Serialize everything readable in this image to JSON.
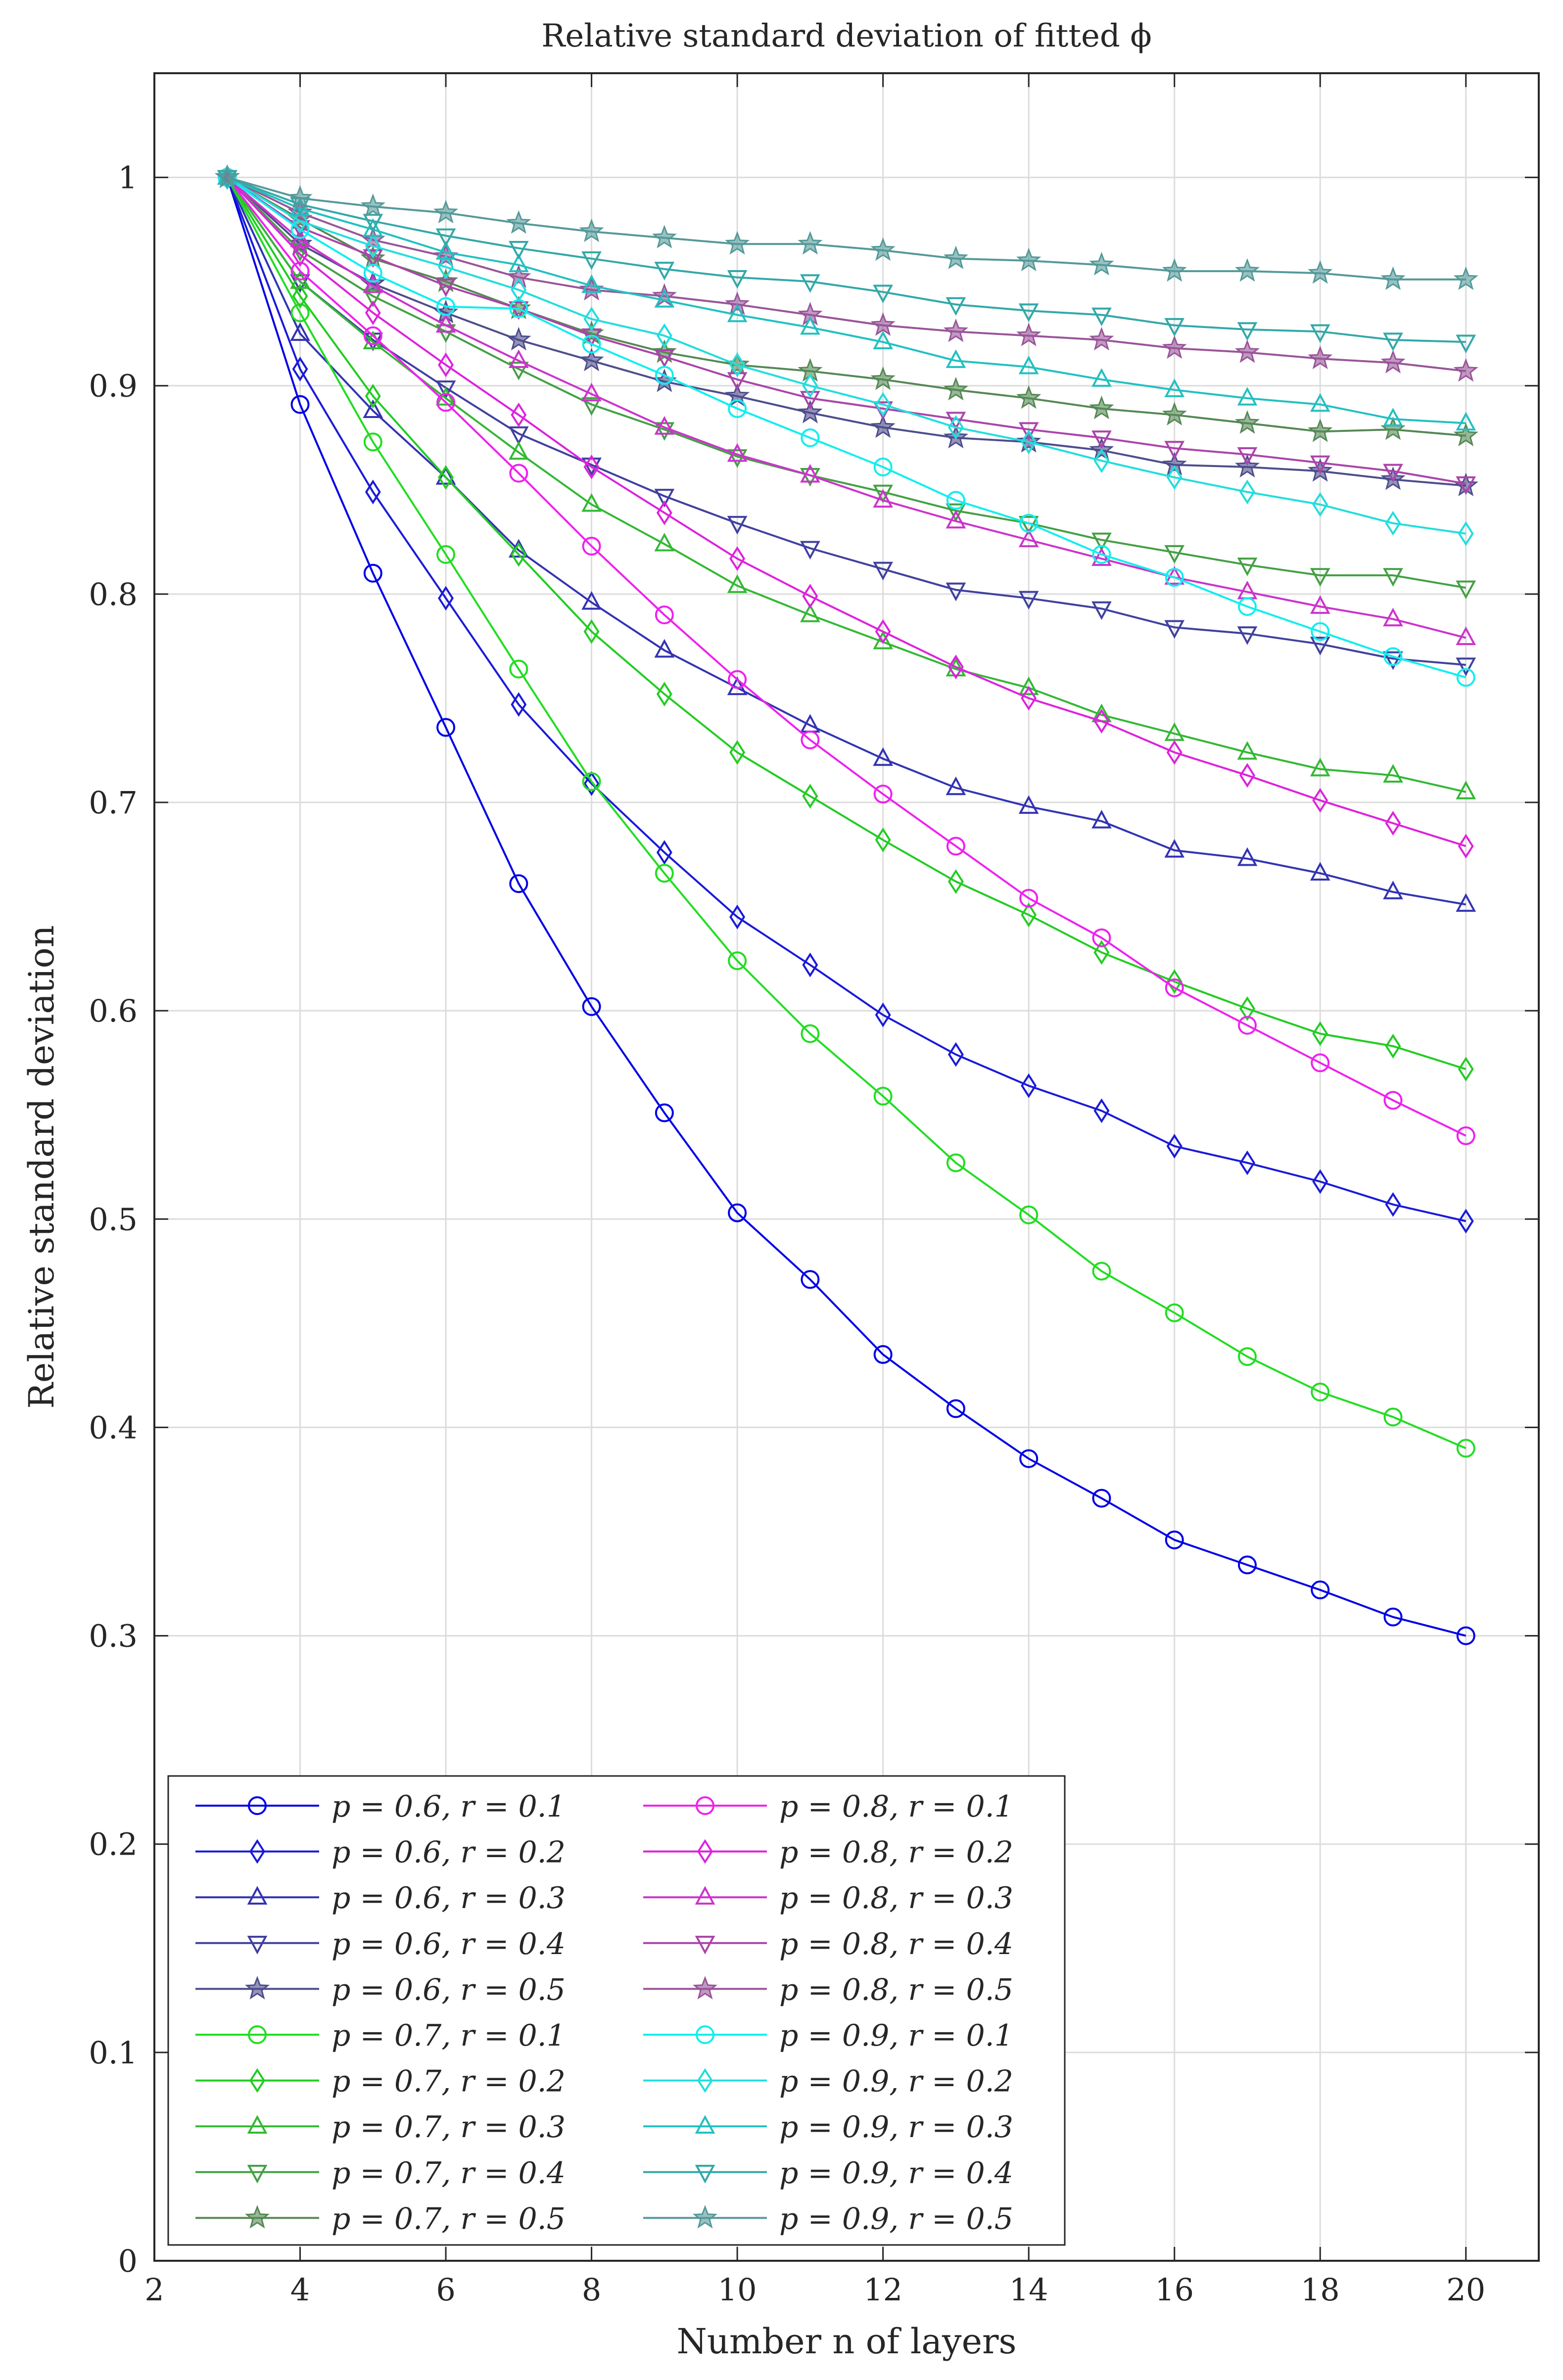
{
  "chart_data": {
    "type": "line",
    "title": "Relative standard deviation of fitted ϕ",
    "xlabel": "Number n of layers",
    "ylabel": "Relative standard deviation",
    "xlim": [
      2,
      21
    ],
    "ylim": [
      0,
      1.05
    ],
    "xticks": [
      2,
      4,
      6,
      8,
      10,
      12,
      14,
      16,
      18,
      20
    ],
    "yticks": [
      0,
      0.1,
      0.2,
      0.3,
      0.4,
      0.5,
      0.6,
      0.7,
      0.8,
      0.9,
      1
    ],
    "xtick_labels": [
      "2",
      "4",
      "6",
      "8",
      "10",
      "12",
      "14",
      "16",
      "18",
      "20"
    ],
    "ytick_labels": [
      "0",
      "0.1",
      "0.2",
      "0.3",
      "0.4",
      "0.5",
      "0.6",
      "0.7",
      "0.8",
      "0.9",
      "1"
    ],
    "grid": true,
    "legend_position": "bottom-left",
    "x": [
      3,
      4,
      5,
      6,
      7,
      8,
      9,
      10,
      11,
      12,
      13,
      14,
      15,
      16,
      17,
      18,
      19,
      20
    ],
    "series": [
      {
        "name": "p = 0.6, r = 0.1",
        "color": "#0000e6",
        "marker": "circle",
        "values": [
          1.0,
          0.891,
          0.81,
          0.736,
          0.661,
          0.602,
          0.551,
          0.503,
          0.471,
          0.435,
          0.409,
          0.385,
          0.366,
          0.346,
          0.334,
          0.322,
          0.309,
          0.3
        ]
      },
      {
        "name": "p = 0.6, r = 0.2",
        "color": "#1a1ad9",
        "marker": "diamond",
        "values": [
          1.0,
          0.908,
          0.849,
          0.798,
          0.747,
          0.709,
          0.676,
          0.645,
          0.622,
          0.598,
          0.579,
          0.564,
          0.552,
          0.535,
          0.527,
          0.518,
          0.507,
          0.499
        ]
      },
      {
        "name": "p = 0.6, r = 0.3",
        "color": "#3333b3",
        "marker": "triangle-up",
        "values": [
          1.0,
          0.925,
          0.888,
          0.856,
          0.821,
          0.796,
          0.773,
          0.755,
          0.737,
          0.721,
          0.707,
          0.698,
          0.691,
          0.677,
          0.673,
          0.666,
          0.657,
          0.651
        ]
      },
      {
        "name": "p = 0.6, r = 0.4",
        "color": "#40409f",
        "marker": "triangle-down",
        "values": [
          1.0,
          0.95,
          0.922,
          0.899,
          0.877,
          0.862,
          0.847,
          0.834,
          0.822,
          0.812,
          0.802,
          0.798,
          0.793,
          0.784,
          0.781,
          0.776,
          0.769,
          0.766
        ]
      },
      {
        "name": "p = 0.6, r = 0.5",
        "color": "#4d4d8c",
        "marker": "star",
        "values": [
          1.0,
          0.968,
          0.949,
          0.935,
          0.922,
          0.912,
          0.902,
          0.895,
          0.887,
          0.88,
          0.875,
          0.873,
          0.869,
          0.862,
          0.861,
          0.859,
          0.855,
          0.852
        ]
      },
      {
        "name": "p = 0.7, r = 0.1",
        "color": "#22dd22",
        "marker": "circle",
        "values": [
          1.0,
          0.935,
          0.873,
          0.819,
          0.764,
          0.71,
          0.666,
          0.624,
          0.589,
          0.559,
          0.527,
          0.502,
          0.475,
          0.455,
          0.434,
          0.417,
          0.405,
          0.39
        ]
      },
      {
        "name": "p = 0.7, r = 0.2",
        "color": "#22cc22",
        "marker": "diamond",
        "values": [
          1.0,
          0.943,
          0.895,
          0.856,
          0.819,
          0.782,
          0.752,
          0.724,
          0.703,
          0.682,
          0.662,
          0.646,
          0.628,
          0.614,
          0.601,
          0.589,
          0.583,
          0.572
        ]
      },
      {
        "name": "p = 0.7, r = 0.3",
        "color": "#33b833",
        "marker": "triangle-up",
        "values": [
          1.0,
          0.95,
          0.921,
          0.894,
          0.868,
          0.843,
          0.824,
          0.804,
          0.79,
          0.777,
          0.764,
          0.755,
          0.742,
          0.733,
          0.724,
          0.716,
          0.713,
          0.705
        ]
      },
      {
        "name": "p = 0.7, r = 0.4",
        "color": "#44a044",
        "marker": "triangle-down",
        "values": [
          1.0,
          0.965,
          0.943,
          0.926,
          0.908,
          0.891,
          0.879,
          0.866,
          0.857,
          0.849,
          0.84,
          0.834,
          0.826,
          0.82,
          0.814,
          0.809,
          0.809,
          0.803
        ]
      },
      {
        "name": "p = 0.7, r = 0.5",
        "color": "#558855",
        "marker": "star",
        "values": [
          1.0,
          0.98,
          0.961,
          0.95,
          0.937,
          0.925,
          0.916,
          0.91,
          0.907,
          0.903,
          0.898,
          0.894,
          0.889,
          0.886,
          0.882,
          0.878,
          0.879,
          0.876
        ]
      },
      {
        "name": "p = 0.8, r = 0.1",
        "color": "#ee22ee",
        "marker": "circle",
        "values": [
          1.0,
          0.955,
          0.924,
          0.892,
          0.858,
          0.823,
          0.79,
          0.759,
          0.73,
          0.704,
          0.679,
          0.654,
          0.635,
          0.611,
          0.593,
          0.575,
          0.557,
          0.54
        ]
      },
      {
        "name": "p = 0.8, r = 0.2",
        "color": "#dd22dd",
        "marker": "diamond",
        "values": [
          1.0,
          0.963,
          0.935,
          0.91,
          0.886,
          0.861,
          0.839,
          0.817,
          0.799,
          0.782,
          0.765,
          0.75,
          0.739,
          0.724,
          0.713,
          0.701,
          0.69,
          0.679
        ]
      },
      {
        "name": "p = 0.8, r = 0.3",
        "color": "#cc33cc",
        "marker": "triangle-up",
        "values": [
          1.0,
          0.97,
          0.948,
          0.929,
          0.912,
          0.896,
          0.88,
          0.867,
          0.857,
          0.845,
          0.835,
          0.826,
          0.817,
          0.808,
          0.801,
          0.794,
          0.788,
          0.779
        ]
      },
      {
        "name": "p = 0.8, r = 0.4",
        "color": "#aa44aa",
        "marker": "triangle-down",
        "values": [
          1.0,
          0.976,
          0.962,
          0.948,
          0.937,
          0.924,
          0.914,
          0.903,
          0.894,
          0.889,
          0.884,
          0.879,
          0.875,
          0.87,
          0.867,
          0.863,
          0.859,
          0.853
        ]
      },
      {
        "name": "p = 0.8, r = 0.5",
        "color": "#995599",
        "marker": "star",
        "values": [
          1.0,
          0.983,
          0.97,
          0.962,
          0.952,
          0.946,
          0.943,
          0.939,
          0.934,
          0.929,
          0.926,
          0.924,
          0.922,
          0.918,
          0.916,
          0.913,
          0.911,
          0.907
        ]
      },
      {
        "name": "p = 0.9, r = 0.1",
        "color": "#11eeee",
        "marker": "circle",
        "values": [
          1.0,
          0.975,
          0.954,
          0.938,
          0.937,
          0.92,
          0.905,
          0.889,
          0.875,
          0.861,
          0.845,
          0.834,
          0.819,
          0.808,
          0.794,
          0.782,
          0.77,
          0.76
        ]
      },
      {
        "name": "p = 0.9, r = 0.2",
        "color": "#22dddd",
        "marker": "diamond",
        "values": [
          1.0,
          0.979,
          0.967,
          0.957,
          0.946,
          0.932,
          0.924,
          0.91,
          0.9,
          0.891,
          0.88,
          0.873,
          0.864,
          0.856,
          0.849,
          0.843,
          0.834,
          0.829
        ]
      },
      {
        "name": "p = 0.9, r = 0.3",
        "color": "#22c0c0",
        "marker": "triangle-up",
        "values": [
          1.0,
          0.985,
          0.975,
          0.964,
          0.958,
          0.948,
          0.941,
          0.934,
          0.928,
          0.921,
          0.912,
          0.909,
          0.903,
          0.898,
          0.894,
          0.891,
          0.884,
          0.882
        ]
      },
      {
        "name": "p = 0.9, r = 0.4",
        "color": "#33a8a8",
        "marker": "triangle-down",
        "values": [
          1.0,
          0.987,
          0.979,
          0.972,
          0.966,
          0.961,
          0.956,
          0.952,
          0.95,
          0.945,
          0.939,
          0.936,
          0.934,
          0.929,
          0.927,
          0.926,
          0.922,
          0.921
        ]
      },
      {
        "name": "p = 0.9, r = 0.5",
        "color": "#559999",
        "marker": "star",
        "values": [
          1.0,
          0.99,
          0.986,
          0.983,
          0.978,
          0.974,
          0.971,
          0.968,
          0.968,
          0.965,
          0.961,
          0.96,
          0.958,
          0.955,
          0.955,
          0.954,
          0.951,
          0.951
        ]
      }
    ]
  }
}
